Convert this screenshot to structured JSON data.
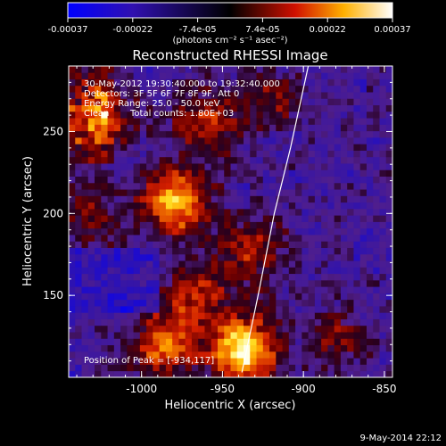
{
  "colorbar": {
    "ticks": [
      "-0.00037",
      "-0.00022",
      "-7.4e-05",
      "7.4e-05",
      "0.00022",
      "0.00037"
    ],
    "units": "(photons cm⁻² s⁻¹ asec⁻²)",
    "range": [
      -0.00037,
      0.00037
    ],
    "colors": [
      "#0000ff",
      "#000000",
      "#ff0000",
      "#ffff00",
      "#ffffff"
    ]
  },
  "image": {
    "title": "Reconstructed RHESSI Image",
    "time_range": "30-May-2012 19:30:40.000 to 19:32:40.000",
    "detectors": "Detectors: 3F 5F 6F 7F 8F 9F, Att 0",
    "energy_range": "Energy Range: 25.0 - 50.0 keV",
    "clean_label": "Clean",
    "total_counts": "Total counts: 1.80E+03",
    "peak_text": "Position of Peak = [-934,117]",
    "footer_date": "9-May-2014 22:12"
  },
  "chart_data": {
    "type": "heatmap",
    "title": "Reconstructed RHESSI Image",
    "xlabel": "Heliocentric X (arcsec)",
    "ylabel": "Heliocentric Y (arcsec)",
    "xlim": [
      -1045,
      -845
    ],
    "ylim": [
      100,
      290
    ],
    "x_ticks": [
      -1000,
      -950,
      -900,
      -850
    ],
    "y_ticks": [
      150,
      200,
      250
    ],
    "x_tick_labels": [
      "-1000",
      "-950",
      "-900",
      "-850"
    ],
    "y_tick_labels": [
      "150",
      "200",
      "250"
    ],
    "peak": {
      "x": -934,
      "y": 117
    },
    "limb_curve": [
      [
        -938,
        103
      ],
      [
        -928,
        150
      ],
      [
        -918,
        200
      ],
      [
        -908,
        240
      ],
      [
        -897,
        290
      ]
    ],
    "bright_sources": [
      {
        "x": -937,
        "y": 117,
        "intensity": 1.0
      },
      {
        "x": -978,
        "y": 207,
        "intensity": 0.85
      },
      {
        "x": -1025,
        "y": 258,
        "intensity": 0.55
      },
      {
        "x": -985,
        "y": 120,
        "intensity": 0.6
      },
      {
        "x": -965,
        "y": 150,
        "intensity": 0.45
      },
      {
        "x": -932,
        "y": 178,
        "intensity": 0.45
      },
      {
        "x": -960,
        "y": 255,
        "intensity": 0.5
      },
      {
        "x": -1035,
        "y": 200,
        "intensity": 0.35
      },
      {
        "x": -920,
        "y": 270,
        "intensity": 0.3
      },
      {
        "x": -880,
        "y": 125,
        "intensity": 0.3
      }
    ]
  }
}
